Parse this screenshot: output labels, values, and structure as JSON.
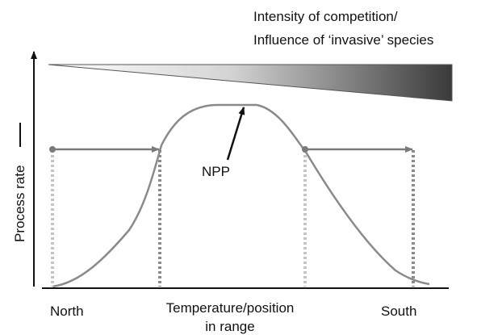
{
  "header": {
    "lines": [
      "Intensity of competition/",
      "Influence of ‘invasive’ species"
    ]
  },
  "y_axis": {
    "label": "Process rate"
  },
  "x_axis": {
    "lines": [
      "Temperature/position",
      "in range"
    ],
    "left_end": "North",
    "right_end": "South"
  },
  "curve": {
    "label": "NPP"
  }
}
